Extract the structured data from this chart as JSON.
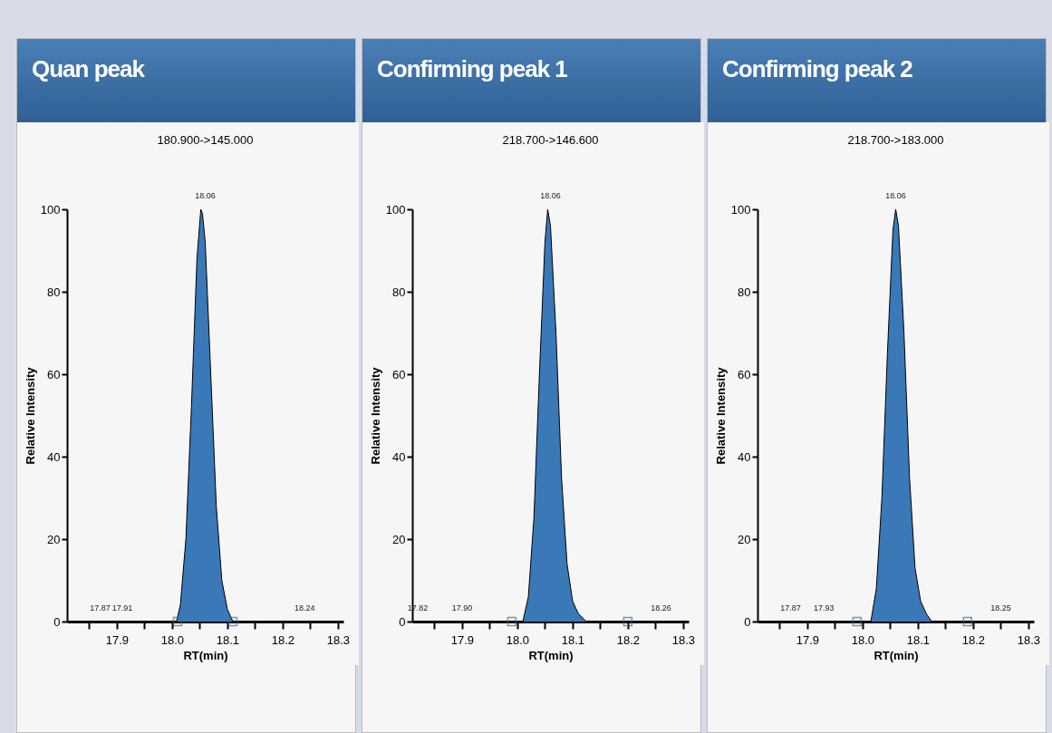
{
  "chart_data": [
    {
      "type": "area",
      "title": "Quan peak",
      "subtitle": "180.900->145.000",
      "xlabel": "RT(min)",
      "ylabel": "Relative Intensity",
      "xlim": [
        17.81,
        18.31
      ],
      "ylim": [
        0,
        100
      ],
      "xticks": [
        {
          "value": 17.85,
          "label": null
        },
        17.9,
        {
          "value": 17.95,
          "label": null
        },
        {
          "value": 18,
          "label": "18.0"
        },
        {
          "value": 18.05,
          "label": null
        },
        18.1,
        {
          "value": 18.15,
          "label": null
        },
        18.2,
        {
          "value": 18.25,
          "label": null
        },
        18.3
      ],
      "yticks": [
        0,
        20,
        40,
        60,
        80,
        100
      ],
      "grid": false,
      "series": [
        {
          "color": "#3a78b8",
          "x": [
            17.81,
            18.0,
            18.008,
            18.015,
            18.025,
            18.035,
            18.045,
            18.052,
            18.055,
            18.06,
            18.07,
            18.08,
            18.09,
            18.1,
            18.11,
            18.31
          ],
          "values": [
            0,
            0,
            0,
            4,
            20,
            52,
            88,
            100,
            99,
            92,
            60,
            28,
            10,
            3,
            0,
            0
          ]
        },
        {
          "type": "scatter",
          "marker": "square",
          "color": "#3a6e9c",
          "x": [
            18.01,
            18.11
          ],
          "values": [
            0,
            0
          ]
        }
      ],
      "annotations": [
        {
          "text": "18.06",
          "x": 18.06,
          "y": 100
        },
        {
          "text": "17.87",
          "x": 17.87,
          "y": 0
        },
        {
          "text": "17.91",
          "x": 17.91,
          "y": 0
        },
        {
          "text": "18.24",
          "x": 18.24,
          "y": 0
        }
      ]
    },
    {
      "type": "area",
      "title": "Confirming peak 1",
      "subtitle": "218.700->146.600",
      "xlabel": "RT(min)",
      "ylabel": "Relative Intensity",
      "xlim": [
        17.81,
        18.31
      ],
      "ylim": [
        0,
        100
      ],
      "xticks": [
        {
          "value": 17.85,
          "label": null
        },
        17.9,
        {
          "value": 17.95,
          "label": null
        },
        {
          "value": 18,
          "label": "18.0"
        },
        {
          "value": 18.05,
          "label": null
        },
        18.1,
        {
          "value": 18.15,
          "label": null
        },
        18.2,
        {
          "value": 18.25,
          "label": null
        },
        18.3
      ],
      "yticks": [
        0,
        20,
        40,
        60,
        80,
        100
      ],
      "grid": false,
      "series": [
        {
          "color": "#3a78b8",
          "x": [
            17.81,
            18.0,
            18.01,
            18.02,
            18.03,
            18.04,
            18.05,
            18.055,
            18.06,
            18.07,
            18.08,
            18.09,
            18.1,
            18.11,
            18.125,
            18.31
          ],
          "values": [
            0,
            0,
            0,
            6,
            25,
            60,
            92,
            100,
            96,
            70,
            35,
            14,
            5,
            2,
            0,
            0
          ]
        },
        {
          "type": "scatter",
          "marker": "square",
          "color": "#3a6e9c",
          "x": [
            17.99,
            18.2
          ],
          "values": [
            0,
            0
          ]
        }
      ],
      "annotations": [
        {
          "text": "18.06",
          "x": 18.06,
          "y": 100
        },
        {
          "text": "17.82",
          "x": 17.82,
          "y": 0
        },
        {
          "text": "17.90",
          "x": 17.9,
          "y": 0
        },
        {
          "text": "18.26",
          "x": 18.26,
          "y": 0
        }
      ]
    },
    {
      "type": "area",
      "title": "Confirming peak 2",
      "subtitle": "218.700->183.000",
      "xlabel": "RT(min)",
      "ylabel": "Relative Intensity",
      "xlim": [
        17.81,
        18.31
      ],
      "ylim": [
        0,
        100
      ],
      "xticks": [
        {
          "value": 17.85,
          "label": null
        },
        17.9,
        {
          "value": 17.95,
          "label": null
        },
        {
          "value": 18,
          "label": "18.0"
        },
        {
          "value": 18.05,
          "label": null
        },
        18.1,
        {
          "value": 18.15,
          "label": null
        },
        18.2,
        {
          "value": 18.25,
          "label": null
        },
        18.3
      ],
      "yticks": [
        0,
        20,
        40,
        60,
        80,
        100
      ],
      "grid": false,
      "series": [
        {
          "color": "#3a78b8",
          "x": [
            17.81,
            18.0,
            18.015,
            18.025,
            18.035,
            18.045,
            18.055,
            18.06,
            18.065,
            18.075,
            18.085,
            18.095,
            18.105,
            18.115,
            18.125,
            18.31
          ],
          "values": [
            0,
            0,
            0,
            8,
            30,
            65,
            95,
            100,
            96,
            70,
            35,
            13,
            5,
            2,
            0,
            0
          ]
        },
        {
          "type": "scatter",
          "marker": "square",
          "color": "#3a6e9c",
          "x": [
            17.99,
            18.19
          ],
          "values": [
            0,
            0
          ]
        }
      ],
      "annotations": [
        {
          "text": "18.06",
          "x": 18.06,
          "y": 100
        },
        {
          "text": "17.87",
          "x": 17.87,
          "y": 0
        },
        {
          "text": "17.93",
          "x": 17.93,
          "y": 0
        },
        {
          "text": "18.25",
          "x": 18.25,
          "y": 0
        }
      ]
    }
  ]
}
